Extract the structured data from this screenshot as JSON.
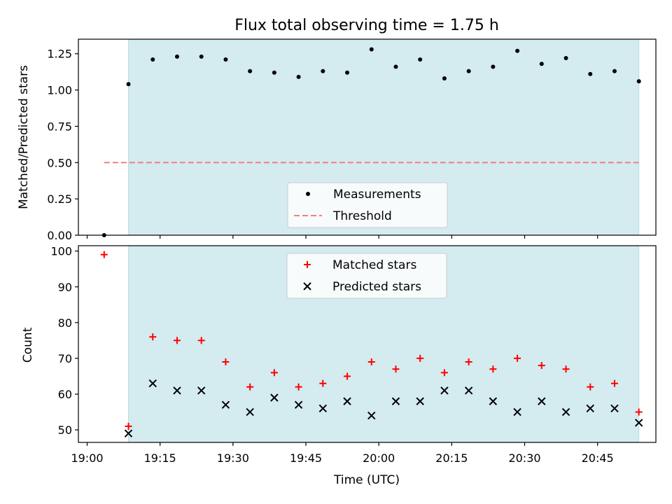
{
  "chart_data": {
    "title": "Flux total observing time = 1.75 h",
    "type": "scatter",
    "xlabel": "Time (UTC)",
    "x_ticks": [
      "19:00",
      "19:15",
      "19:30",
      "19:45",
      "20:00",
      "20:15",
      "20:30",
      "20:45"
    ],
    "x_tick_minutes": [
      0,
      15,
      30,
      45,
      60,
      75,
      90,
      105
    ],
    "xlim_minutes": [
      -1.8,
      117.0
    ],
    "shaded_span_minutes": [
      8.5,
      113.5
    ],
    "shade_color": "#d4ebf0",
    "panels": [
      {
        "ylabel": "Matched/Predicted stars",
        "ylim": [
          0,
          1.35
        ],
        "y_ticks": [
          "0.00",
          "0.25",
          "0.50",
          "0.75",
          "1.00",
          "1.25"
        ],
        "y_tick_values": [
          0,
          0.25,
          0.5,
          0.75,
          1.0,
          1.25
        ],
        "legend_position": "lower center",
        "legend": [
          {
            "label": "Measurements",
            "marker": "dot",
            "color": "#000000"
          },
          {
            "label": "Threshold",
            "marker": "dashed-line",
            "color": "#f08080"
          }
        ],
        "threshold": {
          "y": 0.5,
          "x_range_minutes": [
            3.5,
            113.5
          ],
          "color": "#f08080"
        },
        "series": [
          {
            "name": "Measurements",
            "marker": "dot",
            "color": "#000000",
            "x_minutes": [
              3.5,
              8.5,
              13.5,
              18.5,
              23.5,
              28.5,
              33.5,
              38.5,
              43.5,
              48.5,
              53.5,
              58.5,
              63.5,
              68.5,
              73.5,
              78.5,
              83.5,
              88.5,
              93.5,
              98.5,
              103.5,
              108.5,
              113.5
            ],
            "y": [
              0.0,
              1.04,
              1.21,
              1.23,
              1.23,
              1.21,
              1.13,
              1.12,
              1.09,
              1.13,
              1.12,
              1.28,
              1.16,
              1.21,
              1.08,
              1.13,
              1.16,
              1.27,
              1.18,
              1.22,
              1.11,
              1.13,
              1.06
            ]
          }
        ]
      },
      {
        "ylabel": "Count",
        "ylim": [
          46.5,
          101.5
        ],
        "y_ticks": [
          "50",
          "60",
          "70",
          "80",
          "90",
          "100"
        ],
        "y_tick_values": [
          50,
          60,
          70,
          80,
          90,
          100
        ],
        "legend_position": "upper center",
        "legend": [
          {
            "label": "Matched stars",
            "marker": "plus",
            "color": "#ff0000"
          },
          {
            "label": "Predicted stars",
            "marker": "x",
            "color": "#000000"
          }
        ],
        "series": [
          {
            "name": "Matched stars",
            "marker": "plus",
            "color": "#ff0000",
            "x_minutes": [
              3.5,
              8.5,
              13.5,
              18.5,
              23.5,
              28.5,
              33.5,
              38.5,
              43.5,
              48.5,
              53.5,
              58.5,
              63.5,
              68.5,
              73.5,
              78.5,
              83.5,
              88.5,
              93.5,
              98.5,
              103.5,
              108.5,
              113.5
            ],
            "y": [
              99,
              51,
              76,
              75,
              75,
              69,
              62,
              66,
              62,
              63,
              65,
              69,
              67,
              70,
              66,
              69,
              67,
              70,
              68,
              67,
              62,
              63,
              55
            ]
          },
          {
            "name": "Predicted stars",
            "marker": "x",
            "color": "#000000",
            "x_minutes": [
              8.5,
              13.5,
              18.5,
              23.5,
              28.5,
              33.5,
              38.5,
              43.5,
              48.5,
              53.5,
              58.5,
              63.5,
              68.5,
              73.5,
              78.5,
              83.5,
              88.5,
              93.5,
              98.5,
              103.5,
              108.5,
              113.5
            ],
            "y": [
              49,
              63,
              61,
              61,
              57,
              55,
              59,
              57,
              56,
              58,
              54,
              58,
              58,
              61,
              61,
              58,
              55,
              58,
              55,
              56,
              56,
              52
            ]
          }
        ]
      }
    ]
  }
}
